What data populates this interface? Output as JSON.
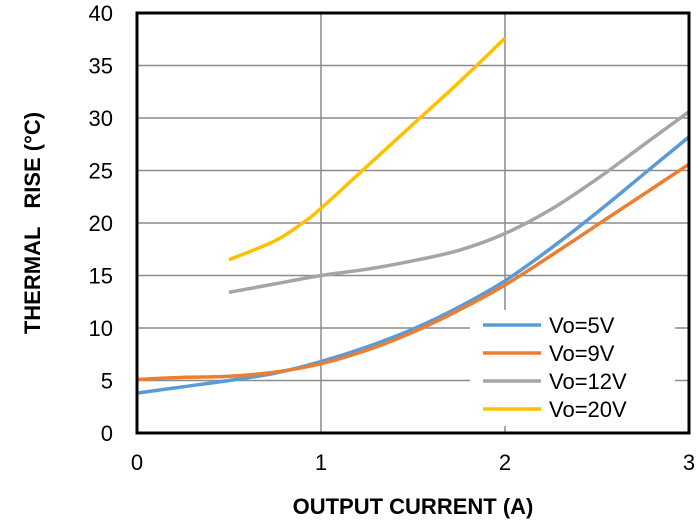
{
  "chart_data": {
    "type": "line",
    "xlabel": "OUTPUT  CURRENT  (A)",
    "ylabel": "THERMAL   RISE (°C)",
    "xlim": [
      0,
      3
    ],
    "ylim": [
      0,
      40
    ],
    "x_ticks": [
      "0",
      "1",
      "2",
      "3"
    ],
    "y_ticks": [
      "0",
      "5",
      "10",
      "15",
      "20",
      "25",
      "30",
      "35",
      "40"
    ],
    "grid": true,
    "legend_position": "bottom-right",
    "series": [
      {
        "name": "Vo=5V",
        "color": "#5B9BD5",
        "points": [
          [
            0,
            3.8
          ],
          [
            0.25,
            4.4
          ],
          [
            0.5,
            5.0
          ],
          [
            0.75,
            5.7
          ],
          [
            1.0,
            6.8
          ],
          [
            1.25,
            8.2
          ],
          [
            1.5,
            9.9
          ],
          [
            1.75,
            12.0
          ],
          [
            2.0,
            14.5
          ],
          [
            2.25,
            17.6
          ],
          [
            2.5,
            21.0
          ],
          [
            2.75,
            24.6
          ],
          [
            3.0,
            28.2
          ]
        ]
      },
      {
        "name": "Vo=9V",
        "color": "#ED7D31",
        "points": [
          [
            0,
            5.1
          ],
          [
            0.25,
            5.3
          ],
          [
            0.5,
            5.4
          ],
          [
            0.75,
            5.8
          ],
          [
            1.0,
            6.6
          ],
          [
            1.25,
            7.9
          ],
          [
            1.5,
            9.6
          ],
          [
            1.75,
            11.7
          ],
          [
            2.0,
            14.1
          ],
          [
            2.25,
            16.9
          ],
          [
            2.5,
            19.8
          ],
          [
            2.75,
            22.7
          ],
          [
            3.0,
            25.6
          ]
        ]
      },
      {
        "name": "Vo=12V",
        "color": "#A5A5A5",
        "points": [
          [
            0.5,
            13.4
          ],
          [
            0.75,
            14.2
          ],
          [
            1.0,
            15.0
          ],
          [
            1.25,
            15.6
          ],
          [
            1.5,
            16.4
          ],
          [
            1.75,
            17.4
          ],
          [
            2.0,
            19.0
          ],
          [
            2.25,
            21.3
          ],
          [
            2.5,
            24.2
          ],
          [
            2.75,
            27.4
          ],
          [
            3.0,
            30.6
          ]
        ]
      },
      {
        "name": "Vo=20V",
        "color": "#FFC000",
        "points": [
          [
            0.5,
            16.5
          ],
          [
            0.75,
            18.3
          ],
          [
            0.9,
            20.0
          ],
          [
            1.0,
            21.4
          ],
          [
            1.25,
            25.4
          ],
          [
            1.5,
            29.4
          ],
          [
            1.75,
            33.4
          ],
          [
            2.0,
            37.6
          ]
        ]
      }
    ]
  }
}
